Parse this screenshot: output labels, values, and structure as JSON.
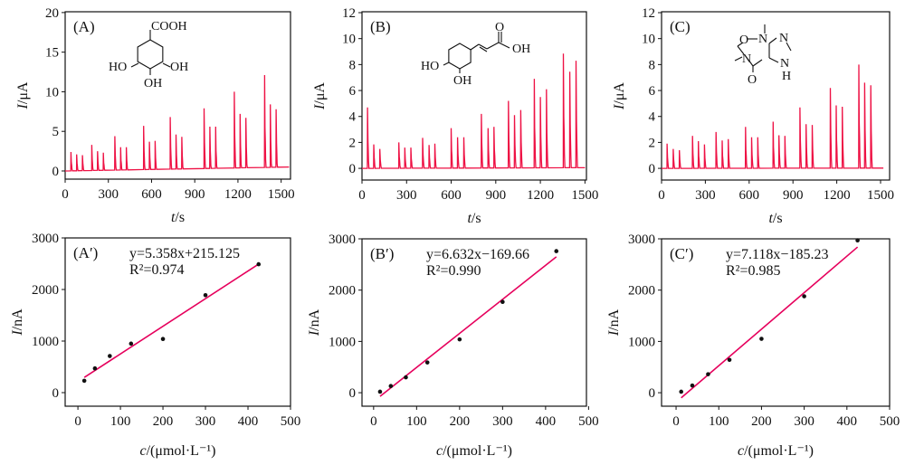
{
  "colors": {
    "trace": "#ee1144",
    "fit": "#e6005c",
    "points": "#111111",
    "axis": "#111111"
  },
  "chart_data": [
    {
      "id": "A",
      "type": "line",
      "panel_label": "(A)",
      "xlabel": {
        "var": "t",
        "unit": "/s"
      },
      "ylabel": {
        "var": "I",
        "unit": "/μA"
      },
      "xlim": [
        0,
        1565
      ],
      "ylim": [
        -1.03,
        20.1
      ],
      "xticks": [
        "0",
        "300",
        "600",
        "900",
        "1200",
        "1500"
      ],
      "yticks": [
        "0",
        "5",
        "10",
        "15",
        "20"
      ],
      "baseline": [
        0,
        0.5
      ],
      "t_end": 1555,
      "peaks": {
        "t": [
          40,
          80,
          120,
          185,
          225,
          265,
          345,
          385,
          425,
          545,
          585,
          625,
          730,
          770,
          810,
          965,
          1005,
          1045,
          1175,
          1215,
          1255,
          1385,
          1425,
          1465
        ],
        "height": [
          2.4,
          2.1,
          2.0,
          3.3,
          2.5,
          2.3,
          4.4,
          3.0,
          3.0,
          5.7,
          3.7,
          3.8,
          6.8,
          4.6,
          4.3,
          7.9,
          5.6,
          5.6,
          10.0,
          7.2,
          6.7,
          12.1,
          8.4,
          7.8
        ]
      },
      "structure": {
        "atoms": [
          "COOH",
          "HO",
          "OH",
          "OH"
        ]
      }
    },
    {
      "id": "B",
      "type": "line",
      "panel_label": "(B)",
      "xlabel": {
        "var": "t",
        "unit": "/s"
      },
      "ylabel": {
        "var": "I",
        "unit": "/μA"
      },
      "xlim": [
        0,
        1510
      ],
      "ylim": [
        -0.9,
        12.07
      ],
      "xticks": [
        "0",
        "300",
        "600",
        "900",
        "1200",
        "1500"
      ],
      "yticks": [
        "0",
        "2",
        "4",
        "6",
        "8",
        "10",
        "12"
      ],
      "baseline": [
        0,
        0.05
      ],
      "t_end": 1500,
      "peaks": {
        "t": [
          37,
          79,
          120,
          248,
          288,
          329,
          408,
          451,
          490,
          600,
          643,
          685,
          803,
          848,
          888,
          985,
          1026,
          1068,
          1159,
          1200,
          1241,
          1355,
          1398,
          1440
        ],
        "height": [
          4.7,
          1.85,
          1.5,
          2.0,
          1.6,
          1.6,
          2.35,
          1.8,
          1.9,
          3.1,
          2.4,
          2.4,
          4.2,
          3.1,
          3.2,
          5.2,
          4.1,
          4.5,
          6.9,
          5.5,
          6.1,
          8.85,
          7.45,
          8.3
        ]
      },
      "structure": {
        "atoms": [
          "O",
          "OH",
          "HO",
          "OH"
        ]
      }
    },
    {
      "id": "C",
      "type": "line",
      "panel_label": "(C)",
      "xlabel": {
        "var": "t",
        "unit": "/s"
      },
      "ylabel": {
        "var": "I",
        "unit": "/μA"
      },
      "xlim": [
        0,
        1562
      ],
      "ylim": [
        -0.9,
        12.07
      ],
      "xticks": [
        "0",
        "300",
        "600",
        "900",
        "1200",
        "1500"
      ],
      "yticks": [
        "0",
        "2",
        "4",
        "6",
        "8",
        "10",
        "12"
      ],
      "baseline": [
        0,
        0.02
      ],
      "t_end": 1519,
      "peaks": {
        "t": [
          38,
          80,
          122,
          212,
          252,
          294,
          373,
          415,
          457,
          575,
          617,
          659,
          764,
          804,
          845,
          948,
          990,
          1032,
          1156,
          1196,
          1238,
          1351,
          1391,
          1433
        ],
        "height": [
          1.9,
          1.5,
          1.4,
          2.5,
          2.1,
          1.85,
          2.8,
          2.15,
          2.25,
          3.2,
          2.4,
          2.4,
          3.6,
          2.55,
          2.5,
          4.7,
          3.4,
          3.35,
          6.2,
          4.85,
          4.75,
          8.0,
          6.6,
          6.4
        ]
      },
      "structure": {
        "atoms": [
          "O",
          "N",
          "N",
          "N",
          "N",
          "H",
          "O"
        ]
      }
    },
    {
      "id": "A2",
      "type": "scatter",
      "panel_label": "(A′)",
      "equation": "y=5.358x+215.125",
      "r2": "R²=0.974",
      "xlabel": {
        "var": "c",
        "unit": "/(μmol·L⁻¹)"
      },
      "ylabel": {
        "var": "I",
        "unit": "/nA"
      },
      "xlim": [
        -30,
        500
      ],
      "ylim": [
        -263,
        3000
      ],
      "xticks": [
        "0",
        "100",
        "200",
        "300",
        "400",
        "500"
      ],
      "yticks": [
        "0",
        "1000",
        "2000",
        "3000"
      ],
      "x": [
        15,
        40,
        75,
        125,
        200,
        300,
        425
      ],
      "y": [
        230,
        470,
        710,
        950,
        1040,
        1890,
        2490
      ],
      "fit": {
        "slope": 5.358,
        "intercept": 215.125,
        "x_range": [
          15,
          425
        ]
      }
    },
    {
      "id": "B2",
      "type": "scatter",
      "panel_label": "(B′)",
      "equation": "y=6.632x−169.66",
      "r2": "R²=0.990",
      "xlabel": {
        "var": "c",
        "unit": "/(μmol·L⁻¹)"
      },
      "ylabel": {
        "var": "I",
        "unit": "/nA"
      },
      "xlim": [
        -27,
        495
      ],
      "ylim": [
        -263,
        3000
      ],
      "xticks": [
        "0",
        "100",
        "200",
        "300",
        "400",
        "500"
      ],
      "yticks": [
        "0",
        "1000",
        "2000",
        "3000"
      ],
      "x": [
        15,
        40,
        75,
        125,
        200,
        300,
        425
      ],
      "y": [
        20,
        130,
        300,
        590,
        1040,
        1770,
        2760
      ],
      "fit": {
        "slope": 6.632,
        "intercept": -169.66,
        "x_range": [
          15,
          425
        ]
      }
    },
    {
      "id": "C2",
      "type": "scatter",
      "panel_label": "(C′)",
      "equation": "y=7.118x−185.23",
      "r2": "R²=0.985",
      "xlabel": {
        "var": "c",
        "unit": "/(μmol·L⁻¹)"
      },
      "ylabel": {
        "var": "I",
        "unit": "/nA"
      },
      "xlim": [
        -34,
        500
      ],
      "ylim": [
        -263,
        3000
      ],
      "xticks": [
        "0",
        "100",
        "200",
        "300",
        "400",
        "500"
      ],
      "yticks": [
        "0",
        "1000",
        "2000",
        "3000"
      ],
      "x": [
        12,
        38,
        75,
        125,
        200,
        300,
        425
      ],
      "y": [
        20,
        140,
        360,
        640,
        1050,
        1880,
        2970
      ],
      "fit": {
        "slope": 7.118,
        "intercept": -185.23,
        "x_range": [
          12,
          425
        ]
      }
    }
  ]
}
